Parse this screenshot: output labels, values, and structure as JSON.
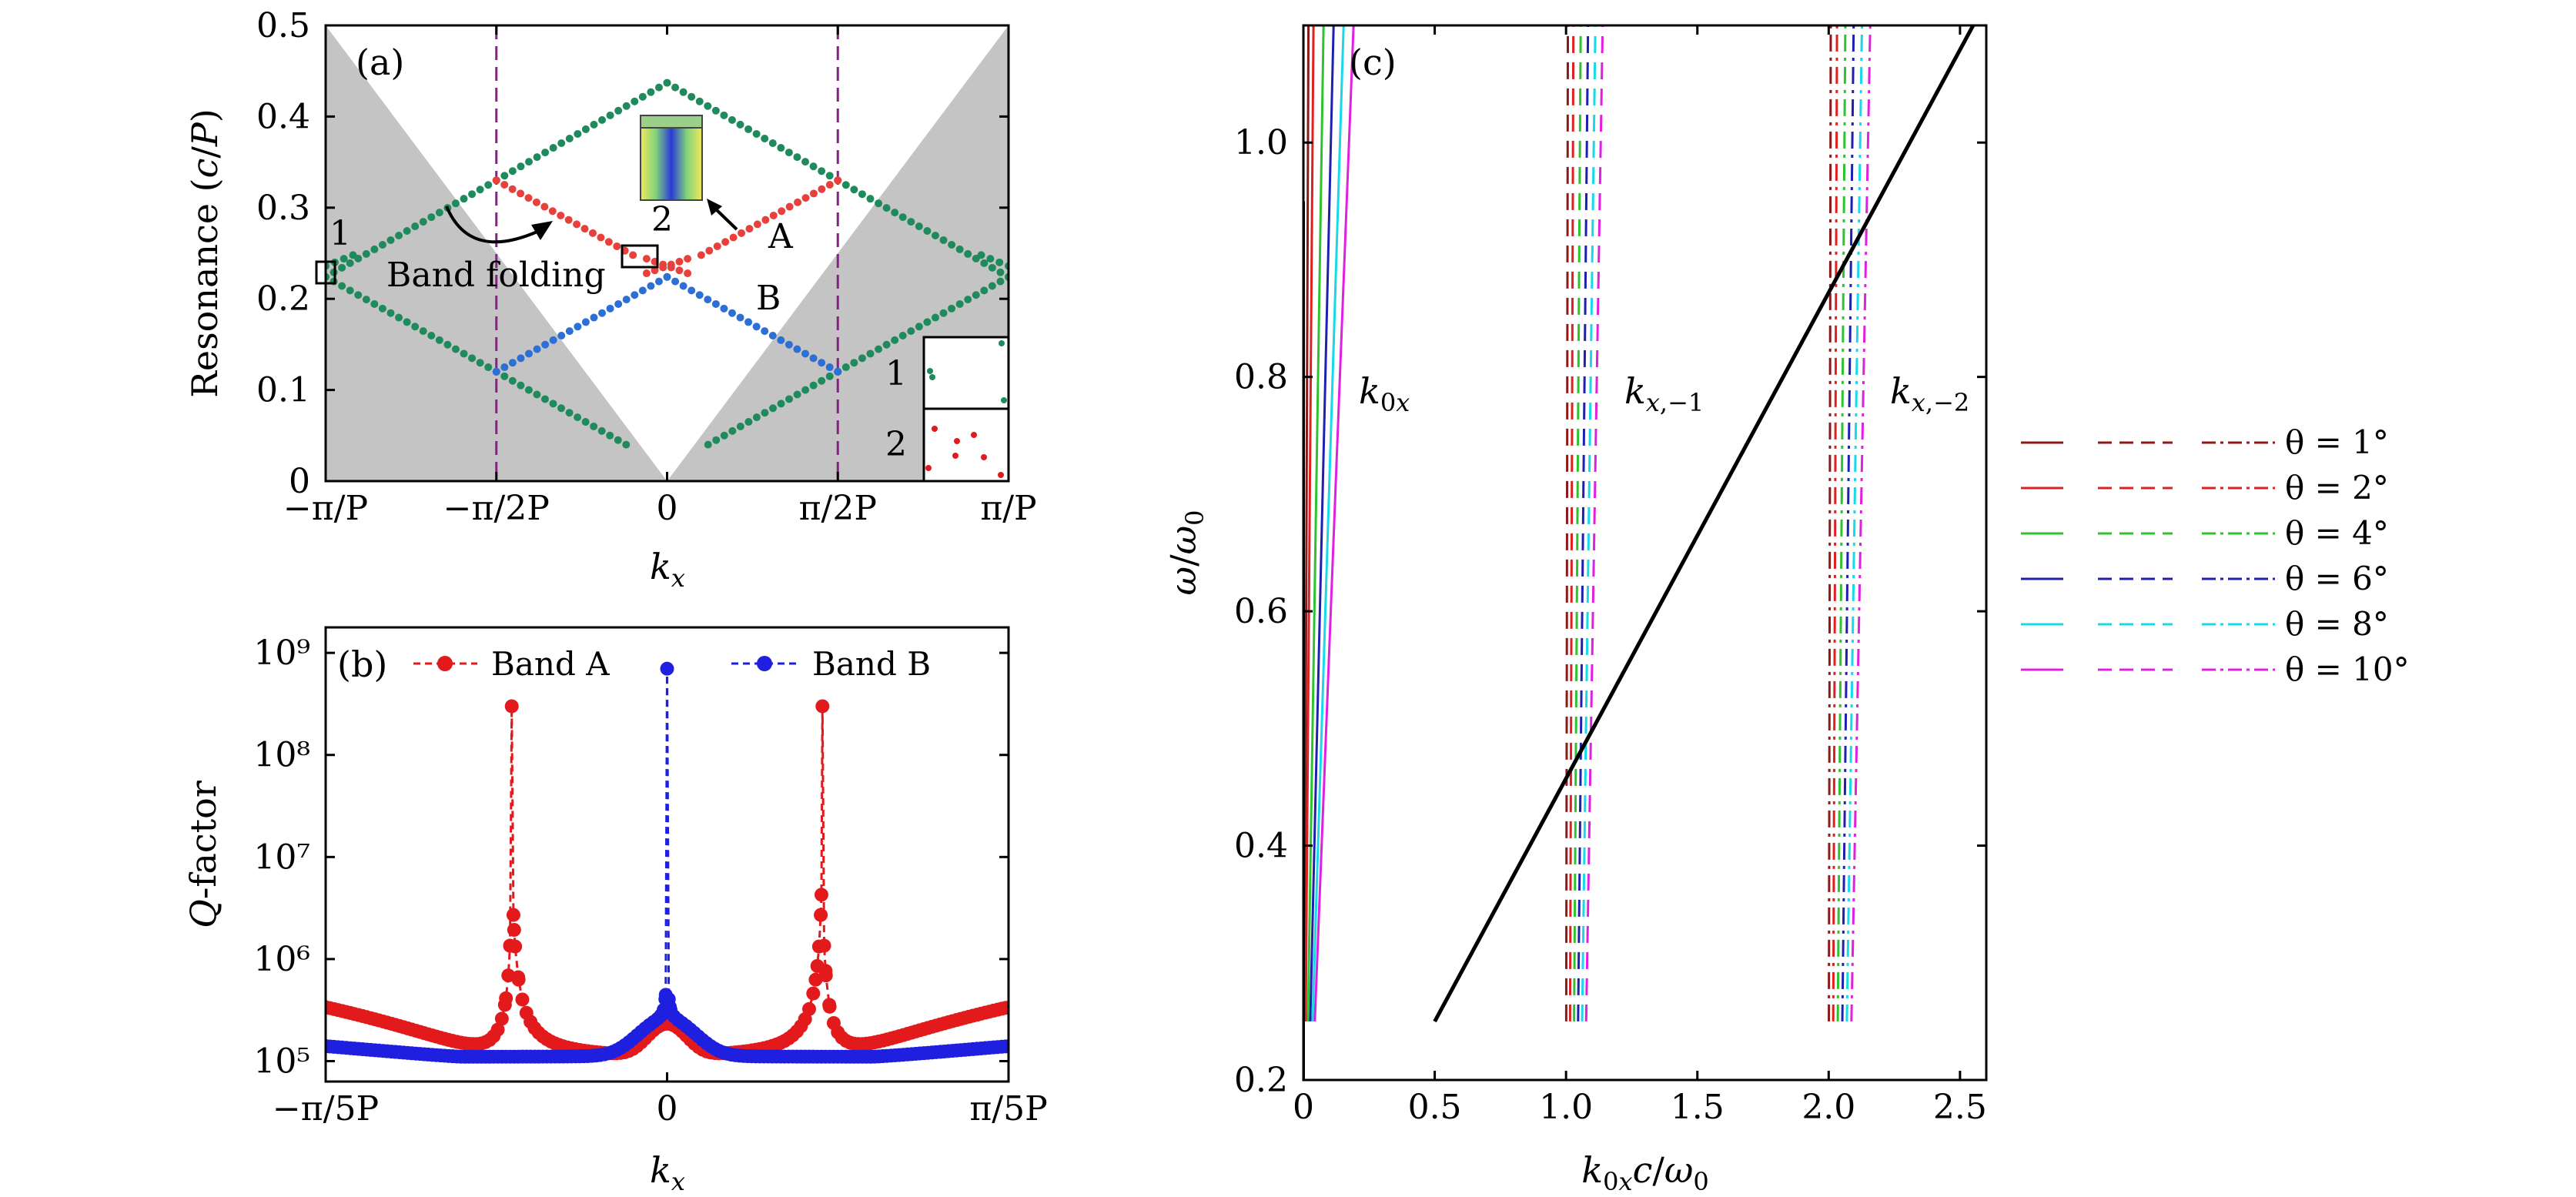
{
  "figure": {
    "panel_labels": {
      "a": "(a)",
      "b": "(b)",
      "c": "(c)"
    }
  },
  "chart_data": [
    {
      "id": "a",
      "type": "scatter",
      "title": "(a)",
      "ylabel": "Resonance (c/P)",
      "xlabel": "kx",
      "xlim": [
        -1,
        1
      ],
      "ylim": [
        0,
        0.5
      ],
      "x_unit": "pi/P",
      "x_tick_values": [
        -1,
        -0.5,
        0,
        0.5,
        1
      ],
      "x_tick_labels": [
        "−π/P",
        "−π/2P",
        "0",
        "π/2P",
        "π/P"
      ],
      "y_ticks": [
        "0",
        "0.1",
        "0.2",
        "0.3",
        "0.4",
        "0.5"
      ],
      "y_tick_values": [
        0,
        0.1,
        0.2,
        0.3,
        0.4,
        0.5
      ],
      "boundary_lines_x": [
        -0.5,
        0.5
      ],
      "light_cone_slope": 0.5,
      "series": [
        {
          "name": "Folded green bands",
          "color": "#1f8a5b",
          "segments": [
            [
              [
                -1,
                0.224
              ],
              [
                -0.5,
                0.33
              ]
            ],
            [
              [
                -0.5,
                0.33
              ],
              [
                0,
                0.437
              ]
            ],
            [
              [
                0,
                0.437
              ],
              [
                0.5,
                0.33
              ]
            ],
            [
              [
                0.5,
                0.33
              ],
              [
                1,
                0.224
              ]
            ],
            [
              [
                -1,
                0.224
              ],
              [
                -0.5,
                0.12
              ]
            ],
            [
              [
                -0.5,
                0.12
              ],
              [
                -0.12,
                0.04
              ]
            ],
            [
              [
                0.12,
                0.04
              ],
              [
                0.5,
                0.12
              ]
            ],
            [
              [
                0.5,
                0.12
              ],
              [
                1,
                0.224
              ]
            ],
            [
              [
                -1,
                0.236
              ],
              [
                -0.92,
                0.248
              ]
            ],
            [
              [
                0.92,
                0.248
              ],
              [
                1,
                0.236
              ]
            ]
          ]
        },
        {
          "name": "Band A",
          "color": "#e8413c",
          "segments": [
            [
              [
                -0.5,
                0.33
              ],
              [
                -0.1,
                0.248
              ]
            ],
            [
              [
                0.1,
                0.248
              ],
              [
                0.5,
                0.33
              ]
            ],
            [
              [
                -0.06,
                0.228
              ],
              [
                0.06,
                0.244
              ]
            ],
            [
              [
                -0.06,
                0.244
              ],
              [
                0.06,
                0.228
              ]
            ]
          ]
        },
        {
          "name": "Band B",
          "color": "#2c6fd6",
          "segments": [
            [
              [
                -0.5,
                0.12
              ],
              [
                0,
                0.224
              ]
            ],
            [
              [
                0,
                0.224
              ],
              [
                0.5,
                0.12
              ]
            ]
          ]
        }
      ],
      "annotations": {
        "A": "A",
        "B": "B",
        "band_folding": "Band folding",
        "mark1": "1",
        "mark2": "2"
      },
      "inset_labels": [
        "1",
        "2"
      ]
    },
    {
      "id": "b",
      "type": "line",
      "title": "(b)",
      "ylabel": "Q-factor",
      "xlabel": "kx",
      "xlim": [
        -1,
        1
      ],
      "x_unit": "pi/5P",
      "x_tick_values": [
        -1,
        0,
        1
      ],
      "x_tick_labels": [
        "−π/5P",
        "0",
        "π/5P"
      ],
      "ylim_log10": [
        4.8,
        9.25
      ],
      "y_tick_values": [
        5,
        6,
        7,
        8,
        9
      ],
      "y_ticks": [
        "10⁵",
        "10⁶",
        "10⁷",
        "10⁸",
        "10⁹"
      ],
      "legend": [
        "Band A",
        "Band B"
      ],
      "series": [
        {
          "name": "Band A",
          "color": "#e31a1c",
          "peaks": [
            [
              -0.455,
              300000000.0
            ],
            [
              0.455,
              300000000.0
            ]
          ],
          "base": 100000.0,
          "edge_value": 330000.0
        },
        {
          "name": "Band B",
          "color": "#1f1fe0",
          "peaks": [
            [
              0,
              700000000.0
            ]
          ],
          "base": 110000.0,
          "edge_value": 140000.0
        }
      ]
    },
    {
      "id": "c",
      "type": "line",
      "title": "(c)",
      "ylabel": "ω/ω0",
      "xlabel": "k0x c/ω0",
      "xlim": [
        0,
        2.6
      ],
      "ylim": [
        0.2,
        1.1
      ],
      "x_ticks": [
        "0",
        "0.5",
        "1.0",
        "1.5",
        "2.0",
        "2.5"
      ],
      "x_tick_values": [
        0,
        0.5,
        1.0,
        1.5,
        2.0,
        2.5
      ],
      "y_ticks": [
        "0.2",
        "0.4",
        "0.6",
        "0.8",
        "1.0"
      ],
      "y_tick_values": [
        0.2,
        0.4,
        0.6,
        0.8,
        1.0
      ],
      "branch_labels": {
        "k0x": "k0x",
        "km1": "kx,−1",
        "km2": "kx,−2"
      },
      "light_line": [
        [
          0.5,
          0.25
        ],
        [
          2.55,
          1.1
        ]
      ],
      "y_range_lines": [
        0.25,
        1.1
      ],
      "series": [
        {
          "name": "θ = 1°",
          "theta_deg": 1,
          "color": "#8b1a1a"
        },
        {
          "name": "θ = 2°",
          "theta_deg": 2,
          "color": "#e02020"
        },
        {
          "name": "θ = 4°",
          "theta_deg": 4,
          "color": "#2ec32e"
        },
        {
          "name": "θ = 6°",
          "theta_deg": 6,
          "color": "#2020b0"
        },
        {
          "name": "θ = 8°",
          "theta_deg": 8,
          "color": "#17d9e8"
        },
        {
          "name": "θ = 10°",
          "theta_deg": 10,
          "color": "#e020e0"
        }
      ]
    }
  ]
}
